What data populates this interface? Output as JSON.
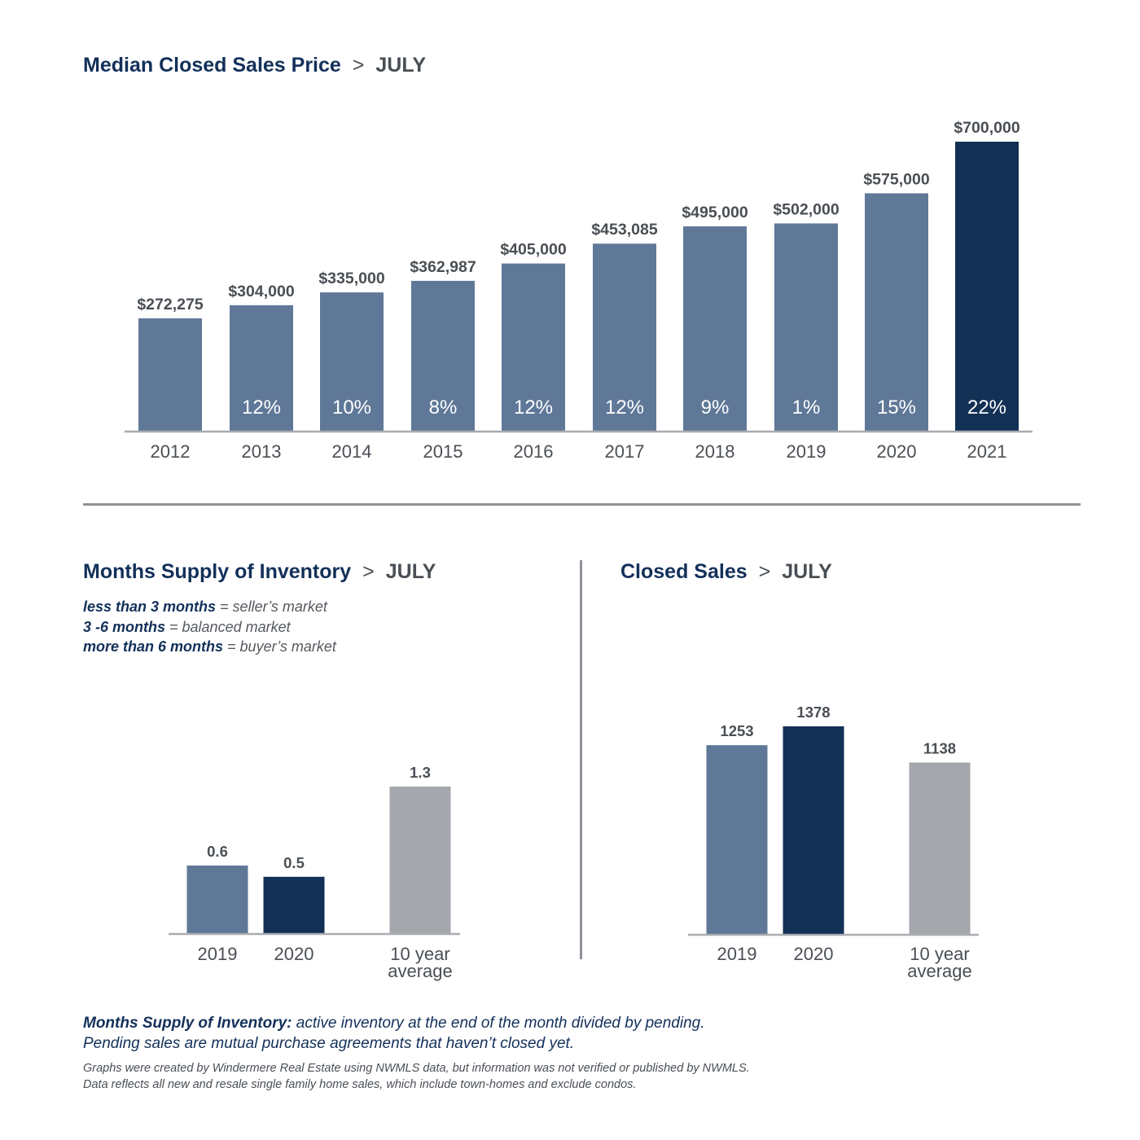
{
  "median": {
    "title": "Median Closed Sales Price",
    "separator": ">",
    "month": "JULY"
  },
  "supply": {
    "title": "Months Supply of Inventory",
    "separator": ">",
    "month": "JULY",
    "legend": [
      {
        "bold": "less than 3 months",
        "rest": " = seller’s market"
      },
      {
        "bold": "3 -6 months",
        "rest": " = balanced market"
      },
      {
        "bold": "more than 6 months",
        "rest": " = buyer’s market"
      }
    ]
  },
  "sales": {
    "title": "Closed Sales",
    "separator": ">",
    "month": "JULY"
  },
  "footnote": {
    "bold": "Months Supply of Inventory:",
    "line1_rest": " active inventory at the end of the month divided by pending.",
    "line2": "Pending sales are mutual purchase agreements that haven’t closed yet."
  },
  "disclaimer": {
    "line1": "Graphs were created by Windermere Real Estate using NWMLS data, but information was not verified or published by NWMLS.",
    "line2": "Data reflects all new and resale single family home sales, which include town-homes and exclude condos."
  },
  "colors": {
    "steel": "#5f7898",
    "navy": "#133055",
    "gray": "#a4a7ab",
    "title": "#13305a",
    "text": "#4a4f55"
  },
  "chart_data": [
    {
      "type": "bar",
      "id": "median_price",
      "title": "Median Closed Sales Price > JULY",
      "categories": [
        "2012",
        "2013",
        "2014",
        "2015",
        "2016",
        "2017",
        "2018",
        "2019",
        "2020",
        "2021"
      ],
      "values": [
        272275,
        304000,
        335000,
        362987,
        405000,
        453085,
        495000,
        502000,
        575000,
        700000
      ],
      "value_labels": [
        "$272,275",
        "$304,000",
        "$335,000",
        "$362,987",
        "$405,000",
        "$453,085",
        "$495,000",
        "$502,000",
        "$575,000",
        "$700,000"
      ],
      "pct_labels": [
        "",
        "12%",
        "10%",
        "8%",
        "12%",
        "12%",
        "9%",
        "1%",
        "15%",
        "22%"
      ],
      "bar_colors": [
        "steel",
        "steel",
        "steel",
        "steel",
        "steel",
        "steel",
        "steel",
        "steel",
        "steel",
        "navy"
      ],
      "grid": false,
      "legend": false
    },
    {
      "type": "bar",
      "id": "months_supply",
      "title": "Months Supply of Inventory > JULY",
      "categories": [
        [
          "2019"
        ],
        [
          "2020"
        ],
        [
          "10 year",
          "average"
        ]
      ],
      "values": [
        0.6,
        0.5,
        1.3
      ],
      "value_labels": [
        "0.6",
        "0.5",
        "1.3"
      ],
      "bar_colors": [
        "steel",
        "navy",
        "gray"
      ],
      "grid": false,
      "legend": false
    },
    {
      "type": "bar",
      "id": "closed_sales",
      "title": "Closed Sales > JULY",
      "categories": [
        [
          "2019"
        ],
        [
          "2020"
        ],
        [
          "10 year",
          "average"
        ]
      ],
      "values": [
        1253,
        1378,
        1138
      ],
      "value_labels": [
        "1253",
        "1378",
        "1138"
      ],
      "bar_colors": [
        "steel",
        "navy",
        "gray"
      ],
      "grid": false,
      "legend": false
    }
  ]
}
